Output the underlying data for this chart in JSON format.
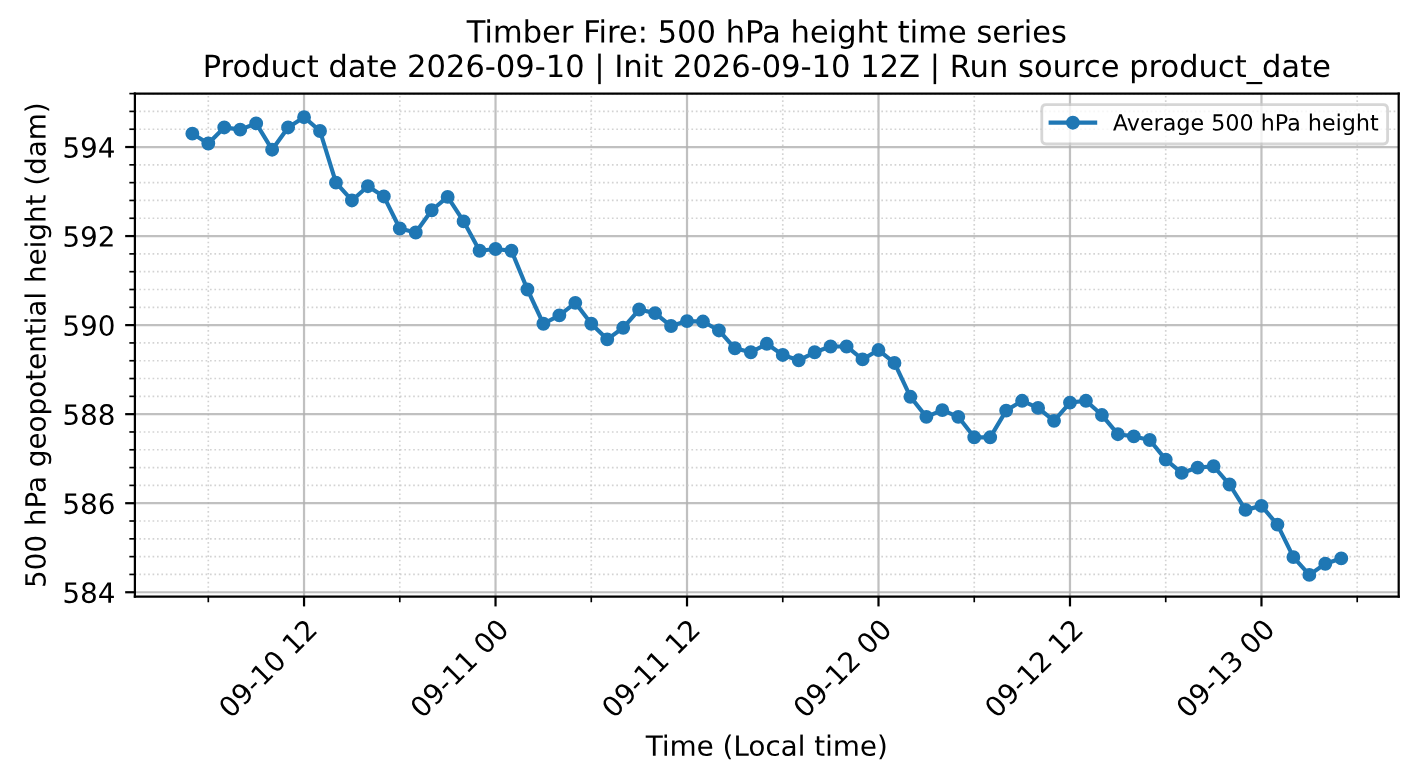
{
  "chart_data": {
    "type": "line",
    "title": "Timber Fire: 500 hPa height time series\nProduct date 2026-09-10 | Init 2026-09-10 12Z | Run source product_date",
    "xlabel": "Time (Local time)",
    "ylabel": "500 hPa geopotential height (dam)",
    "x": [
      "2026-09-10T05:00",
      "2026-09-10T06:00",
      "2026-09-10T07:00",
      "2026-09-10T08:00",
      "2026-09-10T09:00",
      "2026-09-10T10:00",
      "2026-09-10T11:00",
      "2026-09-10T12:00",
      "2026-09-10T13:00",
      "2026-09-10T14:00",
      "2026-09-10T15:00",
      "2026-09-10T16:00",
      "2026-09-10T17:00",
      "2026-09-10T18:00",
      "2026-09-10T19:00",
      "2026-09-10T20:00",
      "2026-09-10T21:00",
      "2026-09-10T22:00",
      "2026-09-10T23:00",
      "2026-09-11T00:00",
      "2026-09-11T01:00",
      "2026-09-11T02:00",
      "2026-09-11T03:00",
      "2026-09-11T04:00",
      "2026-09-11T05:00",
      "2026-09-11T06:00",
      "2026-09-11T07:00",
      "2026-09-11T08:00",
      "2026-09-11T09:00",
      "2026-09-11T10:00",
      "2026-09-11T11:00",
      "2026-09-11T12:00",
      "2026-09-11T13:00",
      "2026-09-11T14:00",
      "2026-09-11T15:00",
      "2026-09-11T16:00",
      "2026-09-11T17:00",
      "2026-09-11T18:00",
      "2026-09-11T19:00",
      "2026-09-11T20:00",
      "2026-09-11T21:00",
      "2026-09-11T22:00",
      "2026-09-11T23:00",
      "2026-09-12T00:00",
      "2026-09-12T01:00",
      "2026-09-12T02:00",
      "2026-09-12T03:00",
      "2026-09-12T04:00",
      "2026-09-12T05:00",
      "2026-09-12T06:00",
      "2026-09-12T07:00",
      "2026-09-12T08:00",
      "2026-09-12T09:00",
      "2026-09-12T10:00",
      "2026-09-12T11:00",
      "2026-09-12T12:00",
      "2026-09-12T13:00",
      "2026-09-12T14:00",
      "2026-09-12T15:00",
      "2026-09-12T16:00",
      "2026-09-12T17:00",
      "2026-09-12T18:00",
      "2026-09-12T19:00",
      "2026-09-12T20:00",
      "2026-09-12T21:00",
      "2026-09-12T22:00",
      "2026-09-12T23:00",
      "2026-09-13T00:00",
      "2026-09-13T01:00",
      "2026-09-13T02:00",
      "2026-09-13T03:00",
      "2026-09-13T04:00",
      "2026-09-13T05:00"
    ],
    "series": [
      {
        "name": "Average 500 hPa height",
        "color": "#1f77b4",
        "values": [
          594.3,
          594.08,
          594.44,
          594.39,
          594.53,
          593.94,
          594.44,
          594.67,
          594.36,
          593.2,
          592.8,
          593.12,
          592.89,
          592.17,
          592.08,
          592.58,
          592.88,
          592.33,
          591.67,
          591.71,
          591.67,
          590.8,
          590.03,
          590.22,
          590.5,
          590.03,
          589.68,
          589.94,
          590.35,
          590.27,
          589.98,
          590.09,
          590.08,
          589.88,
          589.48,
          589.39,
          589.58,
          589.33,
          589.21,
          589.39,
          589.52,
          589.52,
          589.23,
          589.44,
          589.15,
          588.39,
          587.94,
          588.09,
          587.94,
          587.48,
          587.48,
          588.08,
          588.3,
          588.14,
          587.85,
          588.26,
          588.3,
          587.98,
          587.55,
          587.5,
          587.42,
          586.98,
          586.68,
          586.8,
          586.83,
          586.42,
          585.85,
          585.94,
          585.52,
          584.79,
          584.39,
          584.64,
          584.76
        ]
      }
    ],
    "xlim": [
      "2026-09-10T01:24",
      "2026-09-13T08:36"
    ],
    "xticks": [
      {
        "value": "2026-09-10T12:00",
        "label": "09-10 12"
      },
      {
        "value": "2026-09-11T00:00",
        "label": "09-11 00"
      },
      {
        "value": "2026-09-11T12:00",
        "label": "09-11 12"
      },
      {
        "value": "2026-09-12T00:00",
        "label": "09-12 00"
      },
      {
        "value": "2026-09-12T12:00",
        "label": "09-12 12"
      },
      {
        "value": "2026-09-13T00:00",
        "label": "09-13 00"
      }
    ],
    "ylim": [
      583.9,
      595.2
    ],
    "yticks": [
      584,
      586,
      588,
      590,
      592,
      594
    ],
    "grid": true,
    "legend": "top right",
    "marker": "circle",
    "line_style": "solid"
  }
}
